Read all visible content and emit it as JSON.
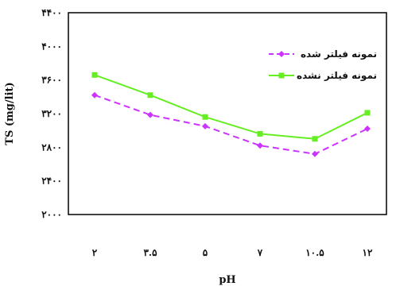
{
  "chart_data": {
    "type": "line",
    "title": "",
    "xlabel": "pH",
    "ylabel": "TS (mg/lit)",
    "categories": [
      "۲",
      "۳.۵",
      "۵",
      "۷",
      "۱۰.۵",
      "۱۲"
    ],
    "yticks": [
      "۲۰۰۰",
      "۲۴۰۰",
      "۲۸۰۰",
      "۳۲۰۰",
      "۳۶۰۰",
      "۴۰۰۰",
      "۴۴۰۰"
    ],
    "ylim": [
      2000,
      4400
    ],
    "grid": false,
    "legend_position": "top-right",
    "series": [
      {
        "name": "نمونه فیلتر شده",
        "color": "#cc33ff",
        "style": "dashed",
        "marker": "diamond",
        "values": [
          3420,
          3185,
          3050,
          2820,
          2720,
          3020
        ]
      },
      {
        "name": "نمونه فیلتر نشده",
        "color": "#66ee22",
        "style": "solid",
        "marker": "square",
        "values": [
          3660,
          3420,
          3160,
          2960,
          2900,
          3210
        ]
      }
    ]
  }
}
